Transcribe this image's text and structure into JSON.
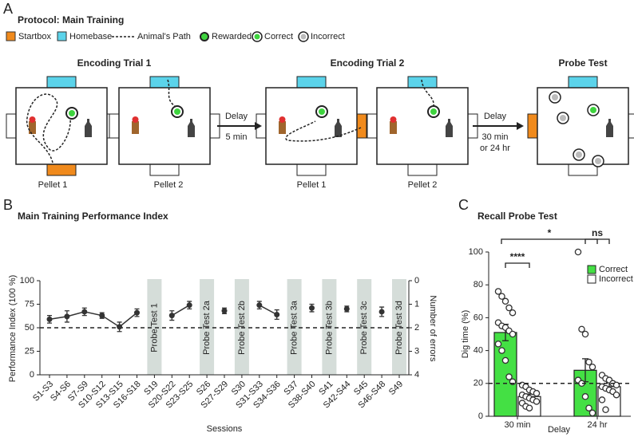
{
  "panel_a": {
    "label": "A",
    "title": "Protocol: Main Training",
    "legend": [
      "Startbox",
      "Homebase",
      "Animal's Path",
      "Rewarded",
      "Correct",
      "Incorrect"
    ],
    "stages": [
      "Encoding Trial 1",
      "Encoding Trial 2",
      "Probe Test"
    ],
    "maze_labels": [
      "Pellet 1",
      "Pellet 2",
      "Pellet 1",
      "Pellet 2"
    ],
    "delays": [
      {
        "title": "Delay",
        "lines": [
          "5 min"
        ]
      },
      {
        "title": "Delay",
        "lines": [
          "30 min",
          "or 24 hr"
        ]
      }
    ]
  },
  "chart_data": [
    {
      "type": "line",
      "panel_label": "B",
      "title": "Main Training Performance Index",
      "x_label": "Sessions",
      "y_label": "Performance Index (100 %)",
      "y2_label": "Number of errors",
      "categories": [
        "S1-S3",
        "S4-S6",
        "S7-S9",
        "S10-S12",
        "S13-S15",
        "S16-S18",
        "S19",
        "S20-S22",
        "S23-S25",
        "S26",
        "S27-S29",
        "S30",
        "S31-S33",
        "S34-S36",
        "S37",
        "S38-S40",
        "S41",
        "S42-S44",
        "S45",
        "S46-S48",
        "S49"
      ],
      "series": [
        {
          "color": "#333333",
          "values": [
            59,
            62,
            67,
            63,
            51,
            66,
            null,
            63,
            74,
            null,
            68,
            null,
            74,
            64,
            null,
            71,
            null,
            70,
            null,
            67,
            null
          ],
          "errors": [
            4,
            6,
            4,
            3,
            5,
            4,
            null,
            5,
            4,
            null,
            3,
            null,
            4,
            5,
            null,
            4,
            null,
            3,
            null,
            5,
            null
          ]
        }
      ],
      "probe_labels": [
        null,
        null,
        null,
        null,
        null,
        null,
        "Probe Test 1",
        null,
        null,
        "Probe Test 2a",
        null,
        "Probe Test 2b",
        null,
        null,
        "Probe Test 3a",
        null,
        "Probe Test 3b",
        null,
        "Probe Test 3c",
        null,
        "Probe Test 3d"
      ],
      "ylim": [
        0,
        100
      ],
      "yticks": [
        0,
        25,
        50,
        75,
        100
      ],
      "y2lim": [
        4,
        0
      ],
      "y2ticks": [
        0,
        1,
        2,
        3,
        4
      ],
      "reference_line": 50
    },
    {
      "type": "bar",
      "panel_label": "C",
      "title": "Recall Probe Test",
      "x_label": "Delay",
      "y_label": "Dig time (%)",
      "categories": [
        "30 min",
        "24 hr"
      ],
      "series": [
        {
          "name": "Correct",
          "color": "#44e044",
          "values": [
            51,
            28
          ],
          "errors": [
            5,
            7
          ],
          "points": [
            [
              76,
              73,
              70,
              66,
              63,
              57,
              55,
              54,
              52,
              50,
              44,
              40,
              34,
              24,
              21
            ],
            [
              100,
              53,
              50,
              33,
              30,
              22,
              20,
              12,
              5,
              2
            ]
          ]
        },
        {
          "name": "Incorrect",
          "color": "#ffffff",
          "values": [
            12,
            18
          ],
          "errors": [
            1.5,
            2.5
          ],
          "points": [
            [
              19,
              18,
              16,
              15,
              14,
              13,
              12,
              11,
              10,
              9,
              8,
              6,
              5
            ],
            [
              25,
              23,
              22,
              20,
              19,
              18,
              17,
              16,
              15,
              13,
              10,
              4
            ]
          ]
        }
      ],
      "ylim": [
        0,
        100
      ],
      "yticks": [
        0,
        20,
        40,
        60,
        80,
        100
      ],
      "reference_line": 20,
      "significance": [
        "****",
        "*",
        "ns"
      ]
    }
  ]
}
